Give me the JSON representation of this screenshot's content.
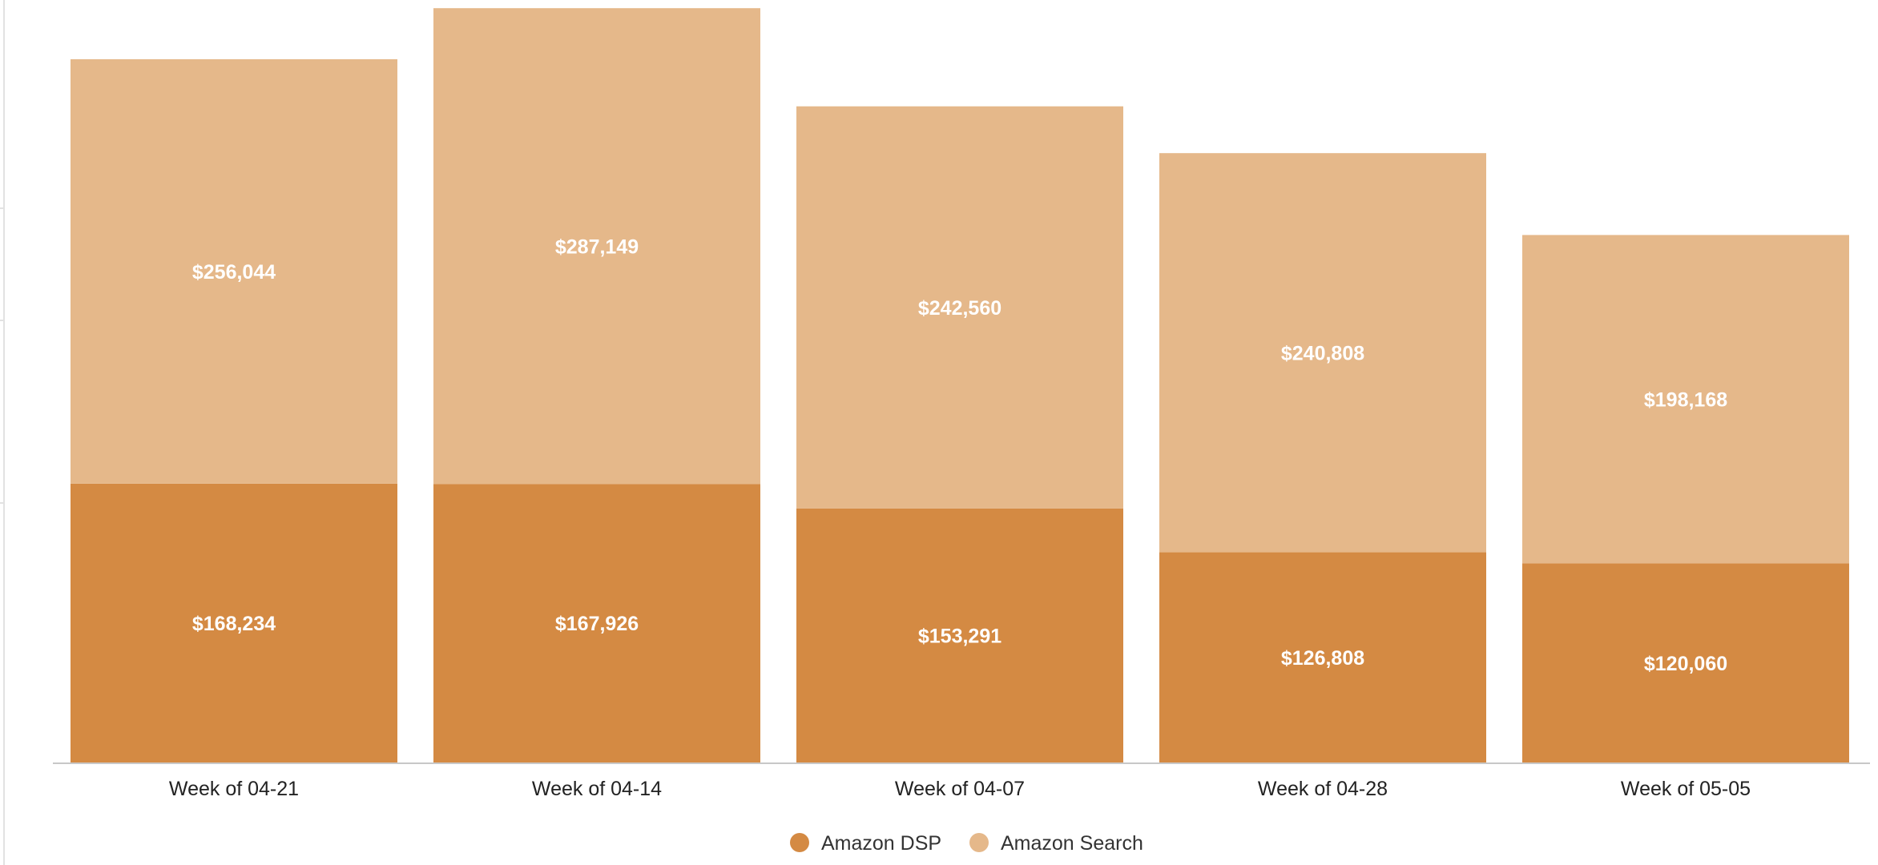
{
  "chart_data": {
    "type": "bar",
    "stacked": true,
    "categories": [
      "Week of 04-21",
      "Week of 04-14",
      "Week of 04-07",
      "Week of 04-28",
      "Week of 05-05"
    ],
    "series": [
      {
        "name": "Amazon DSP",
        "color": "#d48a43",
        "values": [
          168234,
          167926,
          153291,
          126808,
          120060
        ],
        "value_labels": [
          "$168,234",
          "$167,926",
          "$153,291",
          "$126,808",
          "$120,060"
        ]
      },
      {
        "name": "Amazon Search",
        "color": "#e5b88a",
        "values": [
          256044,
          287149,
          242560,
          240808,
          198168
        ],
        "value_labels": [
          "$256,044",
          "$287,149",
          "$242,560",
          "$240,808",
          "$198,168"
        ]
      }
    ],
    "ylim": [
      0,
      460000
    ],
    "grid": false,
    "legend": "bottom-center",
    "title": "",
    "xlabel": "",
    "ylabel": ""
  }
}
